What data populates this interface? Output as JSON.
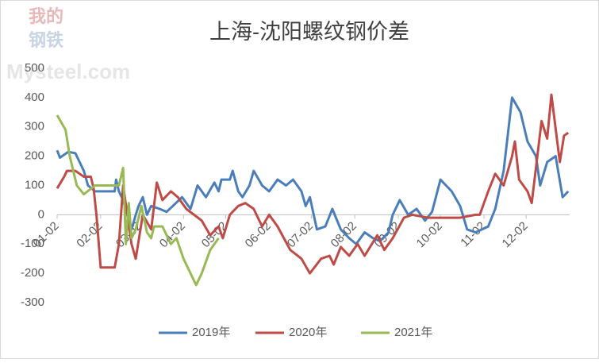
{
  "chart_data": {
    "type": "line",
    "title": "上海-沈阳螺纹钢价差",
    "watermark": [
      "我的",
      "钢铁",
      "Mysteel.com"
    ],
    "xlim": [
      0,
      365
    ],
    "xticks": [
      {
        "value": 0,
        "label": "01-02"
      },
      {
        "value": 31,
        "label": "02-02"
      },
      {
        "value": 59,
        "label": "03-02"
      },
      {
        "value": 90,
        "label": "04-02"
      },
      {
        "value": 120,
        "label": "05-02"
      },
      {
        "value": 151,
        "label": "06-02"
      },
      {
        "value": 181,
        "label": "07-02"
      },
      {
        "value": 212,
        "label": "08-02"
      },
      {
        "value": 243,
        "label": "09-02"
      },
      {
        "value": 273,
        "label": "10-02"
      },
      {
        "value": 304,
        "label": "11-02"
      },
      {
        "value": 334,
        "label": "12-02"
      }
    ],
    "ylim": [
      -300,
      500
    ],
    "yticks": [
      -300,
      -200,
      -100,
      0,
      100,
      200,
      300,
      400,
      500
    ],
    "grid": false,
    "legend": "bottom",
    "series": [
      {
        "name": "2019年",
        "color": "#4a7ebb",
        "x": [
          0,
          2,
          8,
          13,
          16,
          19,
          22,
          27,
          41,
          42,
          44,
          47,
          50,
          53,
          56,
          58,
          61,
          64,
          67,
          73,
          78,
          89,
          95,
          100,
          106,
          112,
          115,
          117,
          123,
          125,
          129,
          132,
          137,
          140,
          146,
          151,
          157,
          163,
          168,
          174,
          177,
          180,
          185,
          191,
          196,
          202,
          208,
          213,
          219,
          225,
          230,
          236,
          239,
          244,
          250,
          256,
          262,
          267,
          273,
          281,
          287,
          292,
          298,
          307,
          312,
          318,
          324,
          330,
          335,
          341,
          344,
          349,
          355,
          360,
          364
        ],
        "values": [
          220,
          195,
          215,
          210,
          180,
          150,
          100,
          80,
          80,
          120,
          80,
          50,
          0,
          -50,
          0,
          30,
          60,
          0,
          30,
          20,
          10,
          60,
          20,
          100,
          60,
          110,
          80,
          120,
          120,
          150,
          80,
          60,
          100,
          150,
          100,
          80,
          120,
          100,
          120,
          80,
          30,
          60,
          -50,
          -40,
          20,
          -50,
          -80,
          -100,
          -60,
          -80,
          -90,
          -60,
          0,
          50,
          0,
          20,
          -20,
          10,
          120,
          80,
          30,
          -50,
          -60,
          -40,
          20,
          150,
          400,
          350,
          250,
          200,
          100,
          180,
          200,
          60,
          80
        ]
      },
      {
        "name": "2020年",
        "color": "#be4b48",
        "x": [
          0,
          5,
          7,
          13,
          19,
          24,
          26,
          28,
          31,
          41,
          44,
          47,
          53,
          56,
          61,
          67,
          71,
          75,
          81,
          86,
          92,
          103,
          109,
          115,
          118,
          123,
          129,
          134,
          140,
          146,
          151,
          157,
          166,
          174,
          180,
          188,
          194,
          197,
          202,
          208,
          214,
          219,
          228,
          233,
          239,
          247,
          253,
          264,
          287,
          298,
          301,
          307,
          312,
          318,
          324,
          326,
          329,
          335,
          338,
          342,
          345,
          349,
          352,
          358,
          361,
          364
        ],
        "values": [
          90,
          130,
          150,
          150,
          130,
          130,
          90,
          0,
          -180,
          -180,
          -100,
          100,
          -100,
          -150,
          0,
          -50,
          110,
          50,
          80,
          60,
          20,
          -20,
          -70,
          -40,
          -80,
          0,
          30,
          40,
          20,
          -40,
          0,
          -40,
          -120,
          -150,
          -200,
          -150,
          -140,
          -170,
          -110,
          -140,
          -100,
          -140,
          -70,
          -120,
          -80,
          -10,
          0,
          -10,
          -10,
          0,
          0,
          80,
          140,
          100,
          200,
          250,
          120,
          80,
          40,
          200,
          320,
          260,
          410,
          180,
          270,
          280
        ]
      },
      {
        "name": "2021年",
        "color": "#98b954",
        "x": [
          0,
          6,
          9,
          14,
          19,
          27,
          44,
          47,
          49,
          51,
          53,
          56,
          60,
          64,
          67,
          69,
          75,
          81,
          85,
          90,
          95,
          99,
          103,
          109,
          115
        ],
        "values": [
          340,
          290,
          200,
          100,
          70,
          100,
          100,
          160,
          -100,
          40,
          -80,
          -50,
          30,
          -60,
          -80,
          -40,
          -40,
          -100,
          -80,
          -150,
          -200,
          -240,
          -200,
          -120,
          -80
        ]
      }
    ]
  }
}
